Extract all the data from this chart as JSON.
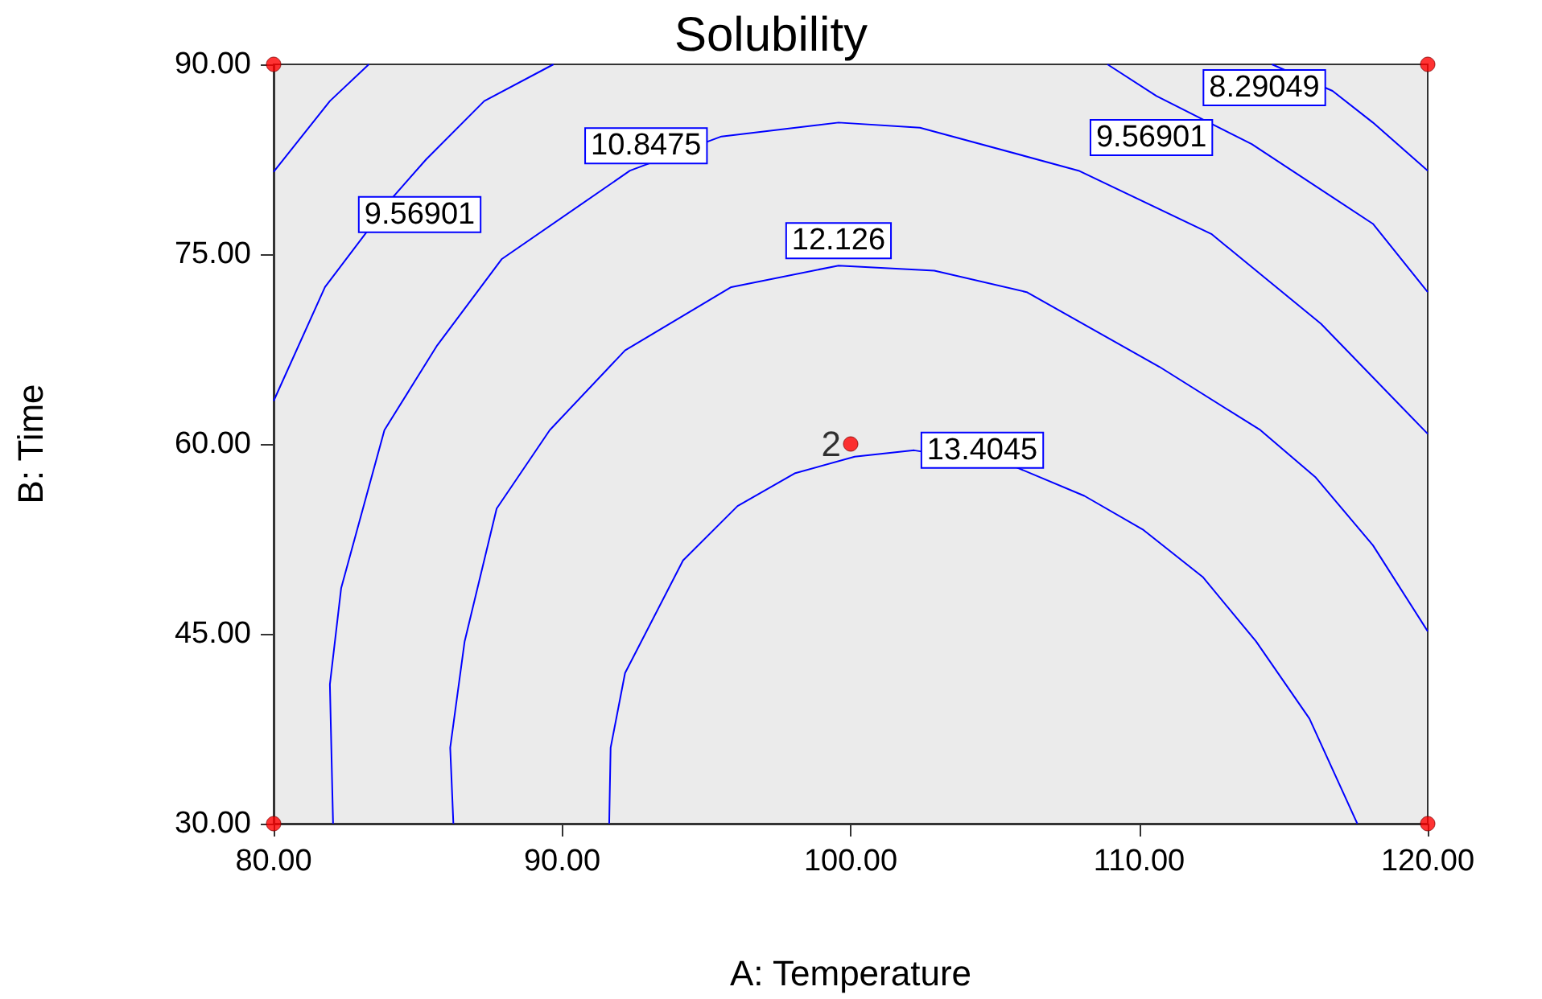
{
  "chart_data": {
    "type": "line",
    "title": "Solubility",
    "xlabel": "A: Temperature",
    "ylabel": "B: Time",
    "xlim": [
      80,
      120
    ],
    "xticks": [
      {
        "value": 80,
        "label": "80.00"
      },
      {
        "value": 90,
        "label": "90.00"
      },
      {
        "value": 100,
        "label": "100.00"
      },
      {
        "value": 110,
        "label": "110.00"
      },
      {
        "value": 120,
        "label": "120.00"
      }
    ],
    "ylim": [
      30,
      90
    ],
    "yticks": [
      {
        "value": 30,
        "label": "30.00"
      },
      {
        "value": 45,
        "label": "45.00"
      },
      {
        "value": 60,
        "label": "60.00"
      },
      {
        "value": 75,
        "label": "75.00"
      },
      {
        "value": 90,
        "label": "90.00"
      }
    ],
    "grid": false,
    "legend": false,
    "marker": "none",
    "line_style": "solid",
    "annotations": [
      {
        "text": "2",
        "x": 100,
        "y": 60
      }
    ],
    "series": [
      {
        "name": "8.29049",
        "color": "#0000ff",
        "x": [
          114.6,
          116.7,
          118.1,
          120
        ],
        "values": [
          90,
          87.9,
          85.4,
          81.6
        ]
      },
      {
        "name": "9.56901",
        "color": "#0000ff",
        "x": [
          108.9,
          110.6,
          113.9,
          118.1,
          120
        ],
        "values": [
          90,
          87.5,
          83.7,
          77.4,
          72.0
        ]
      },
      {
        "name": "9.56901",
        "color": "#0000ff",
        "x": [
          80,
          81.78,
          84.17,
          85.29,
          87.3,
          89.7
        ],
        "values": [
          63.4,
          72.4,
          79.6,
          82.5,
          87.1,
          90
        ]
      },
      {
        "name": "10.8475",
        "color": "#0000ff",
        "x": [
          82.06,
          81.95,
          82.34,
          83.84,
          85.67,
          87.9,
          92.35,
          95.52,
          99.58,
          102.4,
          107.9,
          112.5,
          116.3,
          120
        ],
        "values": [
          30,
          41.0,
          48.6,
          61.1,
          67.8,
          74.6,
          81.6,
          84.3,
          85.4,
          85.0,
          81.6,
          76.6,
          69.5,
          60.8
        ]
      },
      {
        "name": "12.126",
        "color": "#0000ff",
        "x": [
          86.23,
          86.12,
          86.62,
          87.73,
          89.57,
          92.18,
          95.86,
          99.58,
          102.9,
          106.1,
          110.7,
          114.2,
          116.1,
          118.1,
          120
        ],
        "values": [
          30,
          36.0,
          44.4,
          54.9,
          61.1,
          67.4,
          72.4,
          74.1,
          73.7,
          72.0,
          66.1,
          61.1,
          57.4,
          52.0,
          45.2
        ]
      },
      {
        "name": "13.4045",
        "color": "#0000ff",
        "x": [
          91.63,
          91.68,
          92.18,
          94.19,
          96.08,
          98.08,
          100.14,
          102.2,
          105.7,
          108.1,
          110.15,
          112.2,
          114.05,
          115.9,
          117.56
        ],
        "values": [
          30,
          36.0,
          41.9,
          50.8,
          55.1,
          57.7,
          59.0,
          59.5,
          58.2,
          55.9,
          53.2,
          49.5,
          44.4,
          38.3,
          30
        ]
      },
      {
        "color": "#0000ff",
        "x": [
          80,
          81.95,
          83.3
        ],
        "values": [
          81.5,
          87.1,
          90
        ]
      },
      {
        "type": "scatter",
        "marker": "circle",
        "color": "#ff0000",
        "x": [
          80,
          120,
          80,
          120,
          100
        ],
        "values": [
          90,
          90,
          30,
          30,
          60
        ]
      }
    ]
  }
}
